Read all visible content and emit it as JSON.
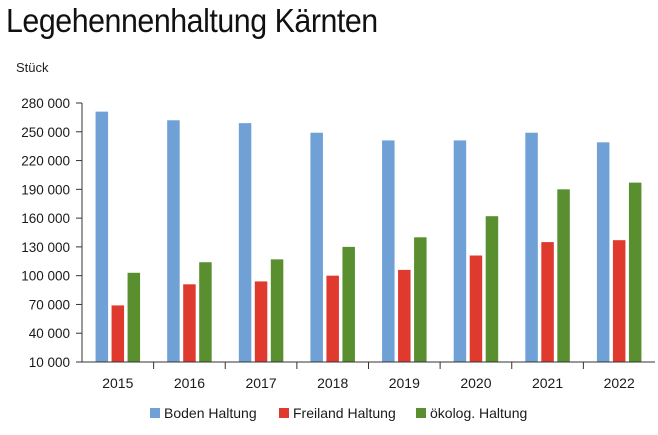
{
  "title": "Legehennenhaltung Kärnten",
  "unit_label": "Stück",
  "chart_data": {
    "type": "bar",
    "title": "Legehennenhaltung Kärnten",
    "ylabel": "Stück",
    "xlabel": "",
    "categories": [
      "2015",
      "2016",
      "2017",
      "2018",
      "2019",
      "2020",
      "2021",
      "2022"
    ],
    "series": [
      {
        "name": "Boden Haltung",
        "color": "#6fa0d6",
        "values": [
          271000,
          262000,
          259000,
          249000,
          241000,
          241000,
          249000,
          239000
        ]
      },
      {
        "name": "Freiland Haltung",
        "color": "#e03a2f",
        "values": [
          69000,
          91000,
          94000,
          100000,
          106000,
          121000,
          135000,
          137000
        ]
      },
      {
        "name": "ökolog. Haltung",
        "color": "#5a8f2f",
        "values": [
          103000,
          114000,
          117000,
          130000,
          140000,
          162000,
          190000,
          197000
        ]
      }
    ],
    "ylim": [
      10000,
      280000
    ],
    "yticks": [
      10000,
      40000,
      70000,
      100000,
      130000,
      160000,
      190000,
      220000,
      250000,
      280000
    ],
    "ytick_labels": [
      "10 000",
      "40 000",
      "70 000",
      "100 000",
      "130 000",
      "160 000",
      "190 000",
      "220 000",
      "250 000",
      "280 000"
    ],
    "grid": false,
    "legend_position": "bottom"
  }
}
